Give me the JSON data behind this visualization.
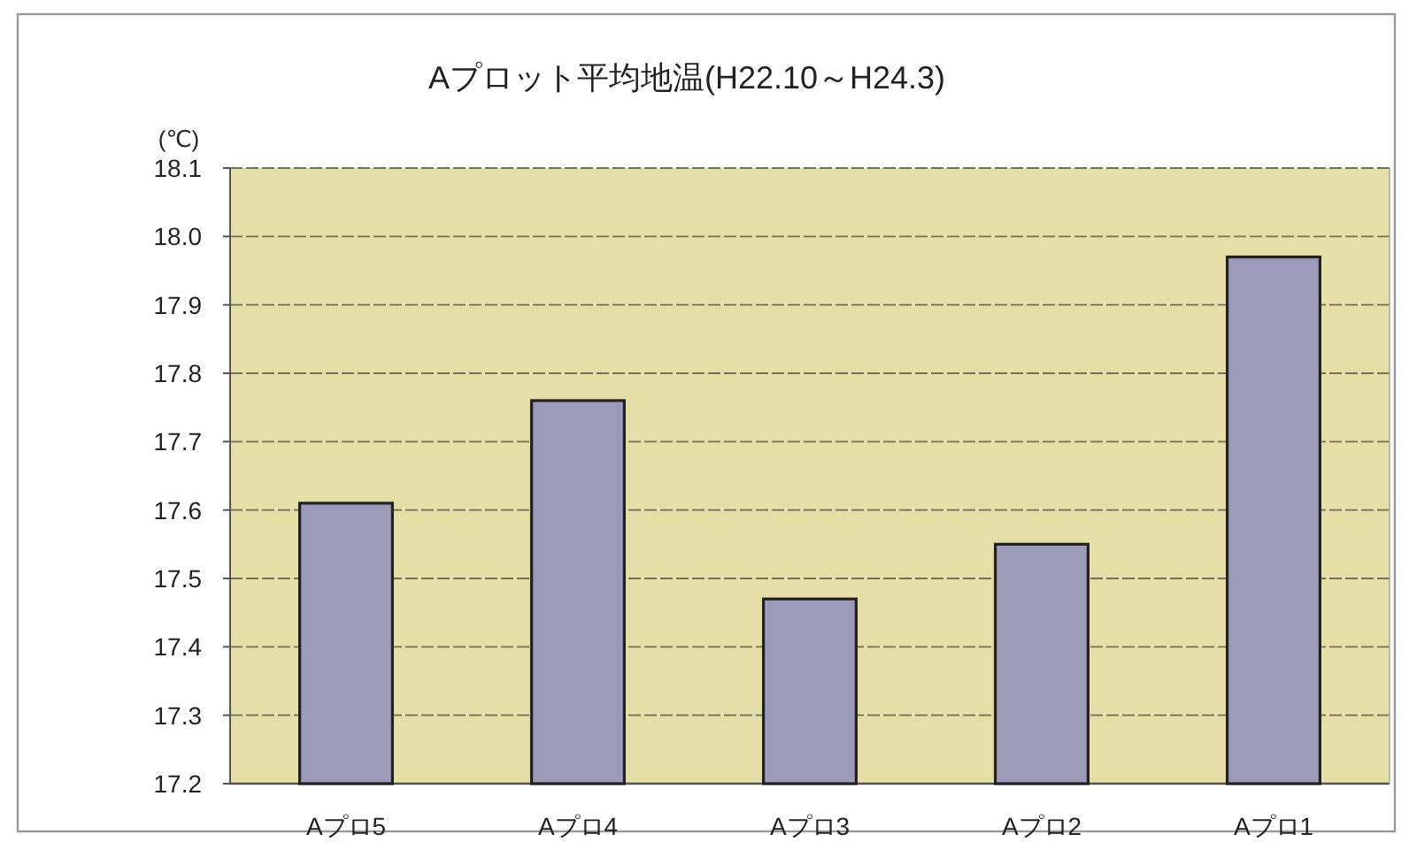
{
  "chart_data": {
    "type": "bar",
    "title": "Aプロット平均地温(H22.10～H24.3)",
    "ylabel": "(℃)",
    "categories": [
      "Aプロ5",
      "Aプロ4",
      "Aプロ3",
      "Aプロ2",
      "Aプロ1"
    ],
    "values": [
      17.61,
      17.76,
      17.47,
      17.55,
      17.97
    ],
    "color": "#9e9aba",
    "ylim": [
      17.2,
      18.1
    ],
    "yticks": [
      17.2,
      17.3,
      17.4,
      17.5,
      17.6,
      17.7,
      17.8,
      17.9,
      {
        "value": 18.0,
        "label": "18.0"
      },
      18.1
    ],
    "grid": "y"
  }
}
